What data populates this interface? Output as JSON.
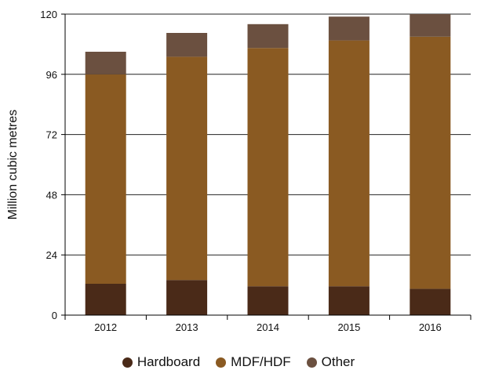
{
  "chart_data": {
    "type": "bar",
    "stacked": true,
    "categories": [
      "2012",
      "2013",
      "2014",
      "2015",
      "2016"
    ],
    "series": [
      {
        "name": "Hardboard",
        "color": "#4a2a18",
        "values": [
          12.5,
          14,
          11.5,
          11.5,
          10.5
        ]
      },
      {
        "name": "MDF/HDF",
        "color": "#8a5a22",
        "values": [
          83.5,
          89,
          95,
          98,
          100.5
        ]
      },
      {
        "name": "Other",
        "color": "#6b5040",
        "values": [
          9,
          9.5,
          9.5,
          9.5,
          9
        ]
      }
    ],
    "ylabel": "Million cubic metres",
    "xlabel": "",
    "ylim": [
      0,
      120
    ],
    "yticks": [
      0,
      24,
      48,
      72,
      96,
      120
    ],
    "grid": true,
    "legend": "bottom"
  }
}
